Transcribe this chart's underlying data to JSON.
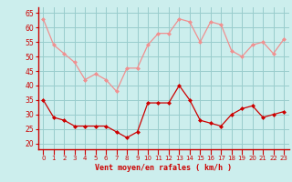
{
  "hours": [
    0,
    1,
    2,
    3,
    4,
    5,
    6,
    7,
    8,
    9,
    10,
    11,
    12,
    13,
    14,
    15,
    16,
    17,
    18,
    19,
    20,
    21,
    22,
    23
  ],
  "rafales": [
    63,
    54,
    51,
    48,
    42,
    44,
    42,
    38,
    46,
    46,
    54,
    58,
    58,
    63,
    62,
    55,
    62,
    61,
    52,
    50,
    54,
    55,
    51,
    56
  ],
  "moyen": [
    35,
    29,
    28,
    26,
    26,
    26,
    26,
    24,
    22,
    24,
    34,
    34,
    34,
    40,
    35,
    28,
    27,
    26,
    30,
    32,
    33,
    29,
    30,
    31
  ],
  "bg_color": "#cceeed",
  "grid_color": "#99cccc",
  "line_color_rafales": "#f09090",
  "line_color_moyen": "#cc0000",
  "marker_color_rafales": "#f09090",
  "marker_color_moyen": "#cc0000",
  "xlabel": "Vent moyen/en rafales ( km/h )",
  "xlabel_color": "#cc0000",
  "tick_color": "#cc0000",
  "spine_color": "#cc0000",
  "ylim": [
    18,
    67
  ],
  "yticks": [
    20,
    25,
    30,
    35,
    40,
    45,
    50,
    55,
    60,
    65
  ]
}
